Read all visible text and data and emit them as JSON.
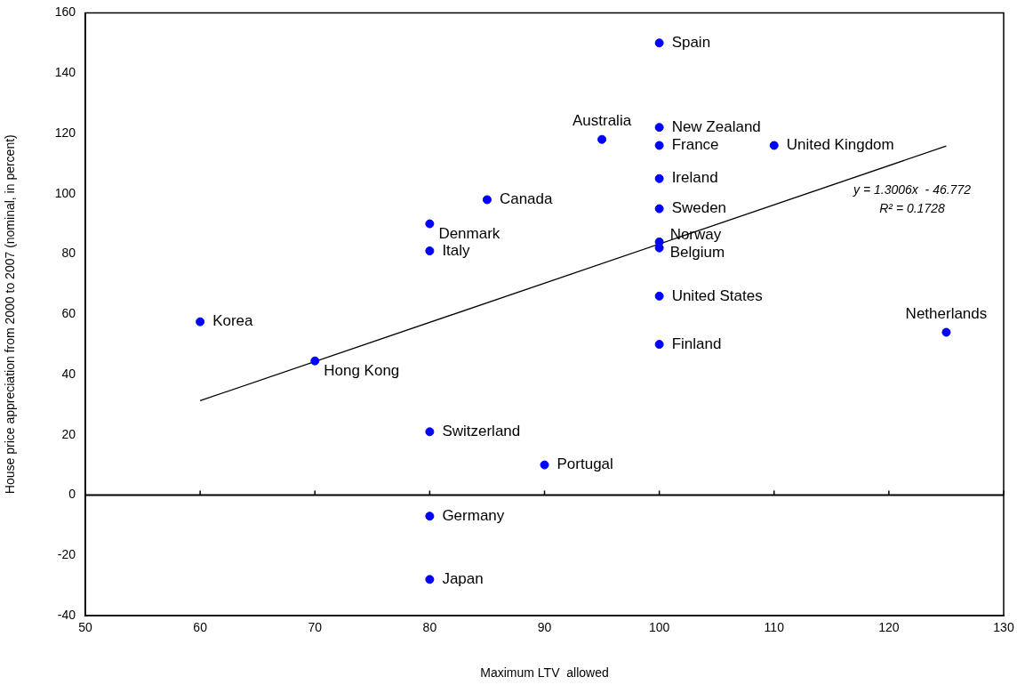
{
  "chart_data": {
    "type": "scatter",
    "xlabel": "Maximum LTV  allowed",
    "ylabel": "House price appreciation from 2000 to 2007 (nominal, in percent)",
    "xlim": [
      50,
      130
    ],
    "xticks": [
      50,
      60,
      70,
      80,
      90,
      100,
      110,
      120,
      130
    ],
    "ylim": [
      -40,
      160
    ],
    "yticks": [
      -40,
      -20,
      0,
      20,
      40,
      60,
      80,
      100,
      120,
      140,
      160
    ],
    "grid": false,
    "legend": false,
    "marker": "circle",
    "ref_lines": [
      {
        "axis": "y",
        "value": 0,
        "color": "#000000"
      }
    ],
    "annotations": [
      "y = 1.3006x  - 46.772",
      "R² = 0.1728"
    ],
    "series": [
      {
        "color": "#0000ff",
        "x": [
          100,
          95,
          100,
          100,
          110,
          100,
          100,
          85,
          80,
          80,
          100,
          100,
          100,
          60,
          70,
          100,
          125,
          80,
          90,
          80,
          80
        ],
        "values": [
          150,
          118,
          122,
          116,
          116,
          105,
          95,
          98,
          90,
          81,
          84,
          82,
          66,
          57.5,
          44.5,
          50,
          54,
          21,
          10,
          -7,
          -28
        ],
        "value_labels": [
          "Spain",
          "Australia",
          "New Zealand",
          "France",
          "United Kingdom",
          "Ireland",
          "Sweden",
          "Canada",
          "Denmark",
          "Italy",
          "Norway",
          "Belgium",
          "United States",
          "Korea",
          "Hong Kong",
          "Finland",
          "Netherlands",
          "Switzerland",
          "Portugal",
          "Germany",
          "Japan"
        ]
      },
      {
        "type": "line",
        "color": "#000000",
        "marker": "none",
        "line_style": "solid",
        "x": [
          60,
          125
        ],
        "values": [
          31.3,
          115.8
        ]
      }
    ]
  }
}
